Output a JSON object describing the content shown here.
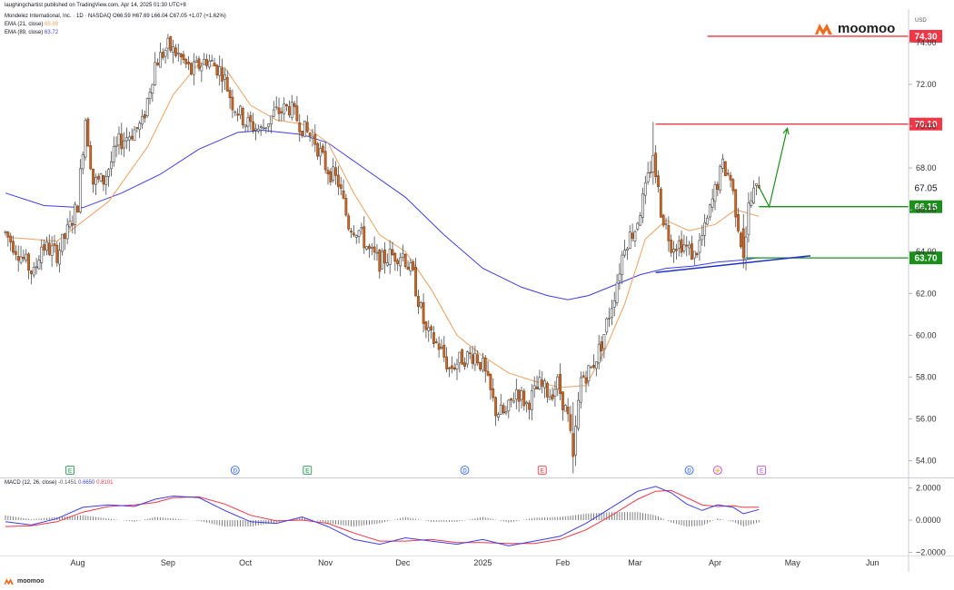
{
  "header": {
    "attribution": "laughingchartist published on TradingView.com, Apr 14, 2025 01:30 UTC+8",
    "symbol_line": "Mondelez International, Inc. · 1D · NASDAQ  O66.59 H67.69 L66.04 C67.05 +1.07 (+1.62%)",
    "ema21_label": "EMA (21, close)",
    "ema21_value": "65.69",
    "ema89_label": "EMA (89, close)",
    "ema89_value": "63.72",
    "currency": "USD"
  },
  "brand": {
    "name": "moomoo",
    "footer": "moomoo"
  },
  "macd_legend": {
    "label": "MACD (12, 26, close)",
    "hist": "-0.1451",
    "macd": "0.6650",
    "signal": "0.8101"
  },
  "colors": {
    "up": "#ffffff",
    "down": "#c56a2a",
    "wick": "#555555",
    "ema21": "#f0a060",
    "ema89": "#3c3cf0",
    "red_level": "#f23645",
    "green_level": "#1a8f1a",
    "trend": "#2030d0",
    "projection": "#1a8f1a",
    "brand": "#f26b1d"
  },
  "chart_data": {
    "type": "candlestick",
    "price_axis": {
      "ylim": [
        53.2,
        75.6
      ],
      "ticks": [
        "74.00",
        "72.00",
        "70.00",
        "68.00",
        "66.00",
        "64.00",
        "62.00",
        "60.00",
        "58.00",
        "56.00",
        "54.00"
      ]
    },
    "time_axis": {
      "range_days": [
        0,
        350
      ],
      "labels": [
        {
          "text": "Aug",
          "day": 28
        },
        {
          "text": "Sep",
          "day": 63
        },
        {
          "text": "Oct",
          "day": 93
        },
        {
          "text": "Nov",
          "day": 124
        },
        {
          "text": "Dec",
          "day": 154
        },
        {
          "text": "2025",
          "day": 185
        },
        {
          "text": "Feb",
          "day": 216
        },
        {
          "text": "Mar",
          "day": 244
        },
        {
          "text": "Apr",
          "day": 275
        },
        {
          "text": "May",
          "day": 305
        },
        {
          "text": "Jun",
          "day": 336
        }
      ]
    },
    "ohlc_anchors": [
      [
        0,
        64.9
      ],
      [
        6,
        63.8
      ],
      [
        11,
        62.9
      ],
      [
        14,
        64.3
      ],
      [
        20,
        63.9
      ],
      [
        25,
        65.2
      ],
      [
        28,
        66.3
      ],
      [
        31,
        70.4
      ],
      [
        34,
        67.3
      ],
      [
        38,
        67.4
      ],
      [
        44,
        69.2
      ],
      [
        48,
        69.6
      ],
      [
        53,
        70.1
      ],
      [
        58,
        73.0
      ],
      [
        63,
        73.8
      ],
      [
        67,
        73.4
      ],
      [
        72,
        72.6
      ],
      [
        78,
        73.2
      ],
      [
        84,
        72.6
      ],
      [
        88,
        71.1
      ],
      [
        93,
        70.2
      ],
      [
        99,
        69.8
      ],
      [
        104,
        70.6
      ],
      [
        110,
        70.9
      ],
      [
        116,
        69.8
      ],
      [
        120,
        69.3
      ],
      [
        124,
        68.1
      ],
      [
        129,
        67.3
      ],
      [
        133,
        65.3
      ],
      [
        137,
        65.0
      ],
      [
        141,
        64.0
      ],
      [
        145,
        63.5
      ],
      [
        149,
        63.8
      ],
      [
        154,
        63.9
      ],
      [
        158,
        62.8
      ],
      [
        163,
        60.1
      ],
      [
        168,
        59.5
      ],
      [
        172,
        58.4
      ],
      [
        177,
        58.9
      ],
      [
        182,
        59.1
      ],
      [
        185,
        58.5
      ],
      [
        190,
        56.4
      ],
      [
        194,
        56.2
      ],
      [
        198,
        57.4
      ],
      [
        202,
        56.7
      ],
      [
        207,
        57.6
      ],
      [
        211,
        57.2
      ],
      [
        214,
        57.7
      ],
      [
        218,
        56.0
      ],
      [
        220,
        54.2
      ],
      [
        223,
        57.9
      ],
      [
        227,
        58.4
      ],
      [
        231,
        59.6
      ],
      [
        236,
        62.0
      ],
      [
        240,
        64.4
      ],
      [
        244,
        65.1
      ],
      [
        248,
        66.9
      ],
      [
        251,
        68.6
      ],
      [
        254,
        66.0
      ],
      [
        258,
        64.4
      ],
      [
        262,
        64.4
      ],
      [
        267,
        63.8
      ],
      [
        271,
        65.0
      ],
      [
        275,
        66.9
      ],
      [
        278,
        68.1
      ],
      [
        281,
        67.5
      ],
      [
        284,
        65.3
      ],
      [
        286,
        63.7
      ],
      [
        288,
        66.1
      ],
      [
        290,
        66.8
      ],
      [
        292,
        67.05
      ]
    ],
    "highlight_candles": [
      {
        "day": 220,
        "open": 55.3,
        "high": 56.8,
        "low": 53.4,
        "close": 54.2
      },
      {
        "day": 251,
        "open": 67.8,
        "high": 70.2,
        "low": 67.2,
        "close": 68.6
      },
      {
        "day": 286,
        "open": 65.1,
        "high": 65.8,
        "low": 63.2,
        "close": 63.7
      }
    ],
    "ema21_points": [
      [
        0,
        64.7
      ],
      [
        20,
        64.5
      ],
      [
        40,
        66.4
      ],
      [
        55,
        69.0
      ],
      [
        65,
        71.5
      ],
      [
        75,
        73.0
      ],
      [
        85,
        72.8
      ],
      [
        95,
        71.0
      ],
      [
        105,
        70.3
      ],
      [
        115,
        70.1
      ],
      [
        125,
        69.2
      ],
      [
        135,
        66.8
      ],
      [
        145,
        64.8
      ],
      [
        155,
        64.0
      ],
      [
        165,
        62.2
      ],
      [
        175,
        60.0
      ],
      [
        185,
        59.0
      ],
      [
        195,
        58.2
      ],
      [
        205,
        57.8
      ],
      [
        215,
        57.5
      ],
      [
        225,
        57.6
      ],
      [
        232,
        59.2
      ],
      [
        240,
        61.5
      ],
      [
        248,
        64.6
      ],
      [
        256,
        65.5
      ],
      [
        265,
        65.0
      ],
      [
        275,
        65.3
      ],
      [
        283,
        66.0
      ],
      [
        292,
        65.69
      ]
    ],
    "ema89_points": [
      [
        0,
        66.8
      ],
      [
        15,
        66.2
      ],
      [
        30,
        66.1
      ],
      [
        45,
        66.8
      ],
      [
        60,
        67.7
      ],
      [
        75,
        68.9
      ],
      [
        90,
        69.7
      ],
      [
        100,
        69.8
      ],
      [
        115,
        69.6
      ],
      [
        125,
        69.2
      ],
      [
        140,
        67.9
      ],
      [
        155,
        66.6
      ],
      [
        170,
        64.8
      ],
      [
        185,
        63.2
      ],
      [
        200,
        62.3
      ],
      [
        210,
        61.9
      ],
      [
        218,
        61.7
      ],
      [
        226,
        61.9
      ],
      [
        236,
        62.4
      ],
      [
        246,
        62.9
      ],
      [
        256,
        63.2
      ],
      [
        266,
        63.3
      ],
      [
        276,
        63.5
      ],
      [
        286,
        63.6
      ],
      [
        292,
        63.72
      ]
    ],
    "levels": [
      {
        "label": "74.30",
        "price": 74.3,
        "color": "red",
        "from_day": 272
      },
      {
        "label": "70.10",
        "price": 70.1,
        "color": "red",
        "from_day": 252
      },
      {
        "label": "66.15",
        "price": 66.15,
        "color": "green",
        "from_day": 292
      },
      {
        "label": "63.70",
        "price": 63.7,
        "color": "green",
        "from_day": 287
      }
    ],
    "last_price_label": "67.05",
    "last_price": 67.05,
    "trendline": [
      [
        252,
        63.0
      ],
      [
        312,
        63.8
      ]
    ],
    "projection": [
      [
        292,
        67.1
      ],
      [
        296,
        66.15
      ],
      [
        303,
        69.9
      ]
    ],
    "event_markers": [
      {
        "day": 25,
        "letter": "E",
        "kind": "earnings"
      },
      {
        "day": 89,
        "letter": "D",
        "kind": "dividend"
      },
      {
        "day": 117,
        "letter": "E",
        "kind": "earnings"
      },
      {
        "day": 178,
        "letter": "D",
        "kind": "dividend"
      },
      {
        "day": 208,
        "letter": "E",
        "kind": "earnings-neg"
      },
      {
        "day": 265,
        "letter": "D",
        "kind": "dividend"
      },
      {
        "day": 276,
        "letter": "⚡",
        "kind": "split"
      },
      {
        "day": 293,
        "letter": "E",
        "kind": "future"
      }
    ],
    "macd": {
      "ylim": [
        -2.2,
        2.6
      ],
      "ticks": [
        "2.0000",
        "0.0000",
        "−2.0000"
      ],
      "macd_points": [
        [
          0,
          -0.1
        ],
        [
          10,
          -0.3
        ],
        [
          20,
          0.1
        ],
        [
          30,
          0.8
        ],
        [
          40,
          0.95
        ],
        [
          50,
          0.85
        ],
        [
          58,
          1.3
        ],
        [
          65,
          1.5
        ],
        [
          75,
          1.4
        ],
        [
          85,
          0.6
        ],
        [
          95,
          -0.1
        ],
        [
          105,
          -0.2
        ],
        [
          115,
          0.2
        ],
        [
          125,
          -0.4
        ],
        [
          135,
          -1.2
        ],
        [
          145,
          -1.5
        ],
        [
          155,
          -1.1
        ],
        [
          165,
          -1.3
        ],
        [
          175,
          -1.5
        ],
        [
          185,
          -1.2
        ],
        [
          195,
          -1.6
        ],
        [
          205,
          -1.3
        ],
        [
          215,
          -1.0
        ],
        [
          225,
          -0.2
        ],
        [
          235,
          0.8
        ],
        [
          245,
          1.8
        ],
        [
          252,
          2.1
        ],
        [
          258,
          1.7
        ],
        [
          264,
          1.0
        ],
        [
          270,
          0.6
        ],
        [
          276,
          0.95
        ],
        [
          282,
          0.8
        ],
        [
          286,
          0.4
        ],
        [
          292,
          0.665
        ]
      ],
      "signal_points": [
        [
          0,
          -0.4
        ],
        [
          10,
          -0.35
        ],
        [
          20,
          -0.1
        ],
        [
          30,
          0.5
        ],
        [
          40,
          0.85
        ],
        [
          50,
          0.95
        ],
        [
          58,
          1.1
        ],
        [
          65,
          1.4
        ],
        [
          75,
          1.45
        ],
        [
          85,
          1.0
        ],
        [
          95,
          0.3
        ],
        [
          105,
          -0.05
        ],
        [
          115,
          0.0
        ],
        [
          125,
          -0.2
        ],
        [
          135,
          -0.8
        ],
        [
          145,
          -1.3
        ],
        [
          155,
          -1.3
        ],
        [
          165,
          -1.2
        ],
        [
          175,
          -1.4
        ],
        [
          185,
          -1.4
        ],
        [
          195,
          -1.45
        ],
        [
          205,
          -1.45
        ],
        [
          215,
          -1.2
        ],
        [
          225,
          -0.6
        ],
        [
          235,
          0.3
        ],
        [
          245,
          1.3
        ],
        [
          252,
          1.8
        ],
        [
          258,
          1.85
        ],
        [
          264,
          1.4
        ],
        [
          270,
          0.95
        ],
        [
          276,
          0.85
        ],
        [
          282,
          0.9
        ],
        [
          286,
          0.8
        ],
        [
          292,
          0.8101
        ]
      ]
    }
  }
}
